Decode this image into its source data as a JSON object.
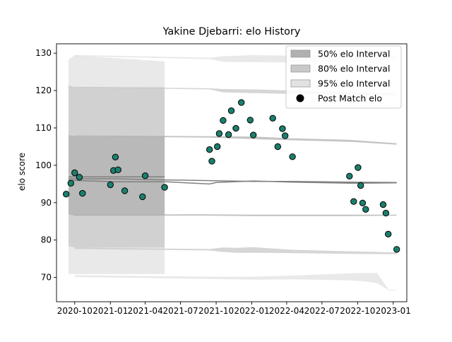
{
  "chart_data": {
    "type": "scatter",
    "title": "Yakine Djebarri: elo History",
    "xlabel": "",
    "ylabel": "elo score",
    "xlim": [
      "2020-08-15",
      "2023-02-05"
    ],
    "ylim": [
      63.5,
      132.5
    ],
    "grid": false,
    "legend_position": "top-right",
    "x_ticks": [
      {
        "date": "2020-10-01",
        "label": "2020-10"
      },
      {
        "date": "2021-01-01",
        "label": "2021-01"
      },
      {
        "date": "2021-04-01",
        "label": "2021-04"
      },
      {
        "date": "2021-07-01",
        "label": "2021-07"
      },
      {
        "date": "2021-10-01",
        "label": "2021-10"
      },
      {
        "date": "2022-01-01",
        "label": "2022-01"
      },
      {
        "date": "2022-04-01",
        "label": "2022-04"
      },
      {
        "date": "2022-07-01",
        "label": "2022-07"
      },
      {
        "date": "2022-10-01",
        "label": "2022-10"
      },
      {
        "date": "2023-01-01",
        "label": "2023-01"
      }
    ],
    "y_ticks": [
      70,
      80,
      90,
      100,
      110,
      120,
      130
    ],
    "legend": [
      {
        "label": "50% elo Interval",
        "color": "#b0b0b0"
      },
      {
        "label": "80% elo Interval",
        "color": "#c8c8c8"
      },
      {
        "label": "95% elo Interval",
        "color": "#e2e2e2"
      },
      {
        "label": "Post Match elo",
        "color": "#000000"
      }
    ],
    "colors": {
      "point_fill": "#1b7f6e",
      "point_edge": "#000000",
      "mean_line": "#808080",
      "band_50": "#b0b0b0",
      "band_80": "#c8c8c8",
      "band_95": "#e2e2e2"
    },
    "post_match_elo": [
      {
        "date": "2020-09-09",
        "elo": 92.3
      },
      {
        "date": "2020-09-21",
        "elo": 95.2
      },
      {
        "date": "2020-10-01",
        "elo": 98.0
      },
      {
        "date": "2020-10-13",
        "elo": 96.8
      },
      {
        "date": "2020-10-21",
        "elo": 92.5
      },
      {
        "date": "2021-01-01",
        "elo": 94.8
      },
      {
        "date": "2021-01-09",
        "elo": 98.6
      },
      {
        "date": "2021-01-14",
        "elo": 102.2
      },
      {
        "date": "2021-01-21",
        "elo": 98.8
      },
      {
        "date": "2021-02-07",
        "elo": 93.2
      },
      {
        "date": "2021-03-25",
        "elo": 91.6
      },
      {
        "date": "2021-04-01",
        "elo": 97.2
      },
      {
        "date": "2021-05-21",
        "elo": 94.1
      },
      {
        "date": "2021-09-14",
        "elo": 104.2
      },
      {
        "date": "2021-09-20",
        "elo": 101.1
      },
      {
        "date": "2021-10-04",
        "elo": 105.0
      },
      {
        "date": "2021-10-09",
        "elo": 108.5
      },
      {
        "date": "2021-10-19",
        "elo": 112.0
      },
      {
        "date": "2021-11-02",
        "elo": 108.2
      },
      {
        "date": "2021-11-09",
        "elo": 114.6
      },
      {
        "date": "2021-11-21",
        "elo": 109.9
      },
      {
        "date": "2021-12-05",
        "elo": 116.8
      },
      {
        "date": "2021-12-28",
        "elo": 112.1
      },
      {
        "date": "2022-01-05",
        "elo": 108.1
      },
      {
        "date": "2022-02-24",
        "elo": 112.6
      },
      {
        "date": "2022-03-09",
        "elo": 105.0
      },
      {
        "date": "2022-03-21",
        "elo": 109.8
      },
      {
        "date": "2022-03-28",
        "elo": 107.9
      },
      {
        "date": "2022-04-16",
        "elo": 102.3
      },
      {
        "date": "2022-09-10",
        "elo": 97.1
      },
      {
        "date": "2022-09-21",
        "elo": 90.3
      },
      {
        "date": "2022-10-02",
        "elo": 99.4
      },
      {
        "date": "2022-10-09",
        "elo": 94.6
      },
      {
        "date": "2022-10-14",
        "elo": 89.9
      },
      {
        "date": "2022-10-22",
        "elo": 88.2
      },
      {
        "date": "2022-12-06",
        "elo": 89.5
      },
      {
        "date": "2022-12-13",
        "elo": 87.2
      },
      {
        "date": "2022-12-19",
        "elo": 81.6
      },
      {
        "date": "2023-01-10",
        "elo": 77.5
      }
    ],
    "intervals": [
      {
        "level": "95%",
        "band": [
          {
            "date": "2020-09-15",
            "low": 70.9,
            "high": 128.3
          },
          {
            "date": "2020-10-01",
            "low": 70.9,
            "high": 129.4
          },
          {
            "date": "2021-05-21",
            "low": 70.9,
            "high": 127.8
          }
        ]
      },
      {
        "level": "80%",
        "band": [
          {
            "date": "2020-09-15",
            "low": 78.4,
            "high": 121.4
          },
          {
            "date": "2020-10-01",
            "low": 78.0,
            "high": 120.9
          },
          {
            "date": "2021-05-21",
            "low": 78.0,
            "high": 120.9
          }
        ]
      },
      {
        "level": "50%",
        "band": [
          {
            "date": "2020-09-15",
            "low": 86.9,
            "high": 108.1
          },
          {
            "date": "2020-10-01",
            "low": 86.5,
            "high": 107.8
          },
          {
            "date": "2021-05-21",
            "low": 86.6,
            "high": 107.7
          }
        ]
      },
      {
        "level": "95% upper",
        "band": [
          {
            "date": "2020-10-01",
            "low": 129.2,
            "high": 129.5
          },
          {
            "date": "2021-09-14",
            "low": 128.4,
            "high": 128.8
          },
          {
            "date": "2021-10-19",
            "low": 127.7,
            "high": 129.2
          },
          {
            "date": "2021-11-21",
            "low": 127.6,
            "high": 129.3
          },
          {
            "date": "2022-01-05",
            "low": 127.6,
            "high": 129.5
          },
          {
            "date": "2022-04-16",
            "low": 127.5,
            "high": 129.3
          },
          {
            "date": "2022-09-10",
            "low": 127.8,
            "high": 129.4
          },
          {
            "date": "2023-01-10",
            "low": 128.2,
            "high": 129.2
          }
        ]
      },
      {
        "level": "80% upper",
        "band": [
          {
            "date": "2020-10-01",
            "low": 120.7,
            "high": 121.0
          },
          {
            "date": "2021-09-14",
            "low": 120.3,
            "high": 120.6
          },
          {
            "date": "2021-10-19",
            "low": 119.5,
            "high": 120.4
          },
          {
            "date": "2022-01-05",
            "low": 119.3,
            "high": 120.3
          },
          {
            "date": "2022-04-16",
            "low": 119.1,
            "high": 120.0
          },
          {
            "date": "2022-09-10",
            "low": 118.9,
            "high": 119.6
          },
          {
            "date": "2023-01-10",
            "low": 118.7,
            "high": 119.2
          }
        ]
      },
      {
        "level": "50% upper",
        "band": [
          {
            "date": "2020-10-01",
            "low": 107.8,
            "high": 108.0
          },
          {
            "date": "2021-09-14",
            "low": 107.4,
            "high": 107.8
          },
          {
            "date": "2022-01-05",
            "low": 107.0,
            "high": 107.7
          },
          {
            "date": "2022-04-16",
            "low": 106.7,
            "high": 107.2
          },
          {
            "date": "2022-09-10",
            "low": 106.3,
            "high": 106.8
          },
          {
            "date": "2023-01-10",
            "low": 105.5,
            "high": 105.9
          }
        ]
      },
      {
        "level": "50% lower",
        "band": [
          {
            "date": "2020-10-01",
            "low": 86.5,
            "high": 86.8
          },
          {
            "date": "2021-09-14",
            "low": 86.5,
            "high": 86.9
          },
          {
            "date": "2022-01-05",
            "low": 86.4,
            "high": 86.8
          },
          {
            "date": "2022-04-16",
            "low": 86.4,
            "high": 86.8
          },
          {
            "date": "2022-09-10",
            "low": 86.4,
            "high": 86.8
          },
          {
            "date": "2023-01-10",
            "low": 86.5,
            "high": 86.8
          }
        ]
      },
      {
        "level": "80% lower",
        "band": [
          {
            "date": "2020-10-01",
            "low": 77.6,
            "high": 78.0
          },
          {
            "date": "2021-09-14",
            "low": 77.2,
            "high": 77.6
          },
          {
            "date": "2021-10-19",
            "low": 76.8,
            "high": 78.0
          },
          {
            "date": "2021-11-21",
            "low": 76.6,
            "high": 77.9
          },
          {
            "date": "2022-01-05",
            "low": 76.6,
            "high": 78.1
          },
          {
            "date": "2022-04-16",
            "low": 76.5,
            "high": 77.4
          },
          {
            "date": "2022-09-10",
            "low": 76.3,
            "high": 77.0
          },
          {
            "date": "2023-01-10",
            "low": 76.2,
            "high": 76.7
          }
        ]
      },
      {
        "level": "95% lower",
        "band": [
          {
            "date": "2020-10-01",
            "low": 70.1,
            "high": 70.6
          },
          {
            "date": "2021-09-14",
            "low": 69.6,
            "high": 70.2
          },
          {
            "date": "2022-01-05",
            "low": 69.4,
            "high": 70.2
          },
          {
            "date": "2022-04-16",
            "low": 69.5,
            "high": 70.5
          },
          {
            "date": "2022-09-10",
            "low": 69.2,
            "high": 71.1
          },
          {
            "date": "2022-10-15",
            "low": 69.0,
            "high": 71.2
          },
          {
            "date": "2022-11-20",
            "low": 68.5,
            "high": 71.2
          },
          {
            "date": "2022-12-20",
            "low": 66.6,
            "high": 66.8
          },
          {
            "date": "2023-01-10",
            "low": 66.5,
            "high": 66.7
          }
        ]
      }
    ],
    "mean_lines": [
      {
        "points": [
          {
            "date": "2020-09-15",
            "elo": 96.9
          },
          {
            "date": "2021-05-21",
            "elo": 96.9
          }
        ]
      },
      {
        "points": [
          {
            "date": "2020-09-15",
            "elo": 96.4
          },
          {
            "date": "2021-01-15",
            "elo": 96.4
          },
          {
            "date": "2021-05-21",
            "elo": 96.1
          },
          {
            "date": "2021-09-14",
            "elo": 95.9
          },
          {
            "date": "2022-01-05",
            "elo": 95.7
          },
          {
            "date": "2022-04-16",
            "elo": 95.7
          },
          {
            "date": "2022-09-10",
            "elo": 95.5
          },
          {
            "date": "2023-01-10",
            "elo": 95.4
          }
        ]
      },
      {
        "points": [
          {
            "date": "2020-09-15",
            "elo": 96.0
          },
          {
            "date": "2021-01-15",
            "elo": 95.6
          },
          {
            "date": "2021-05-21",
            "elo": 95.6
          },
          {
            "date": "2021-09-14",
            "elo": 95.0
          },
          {
            "date": "2021-10-01",
            "elo": 95.4
          },
          {
            "date": "2022-01-05",
            "elo": 95.8
          },
          {
            "date": "2022-04-16",
            "elo": 95.5
          },
          {
            "date": "2022-09-10",
            "elo": 95.2
          },
          {
            "date": "2023-01-10",
            "elo": 95.3
          }
        ]
      }
    ]
  }
}
